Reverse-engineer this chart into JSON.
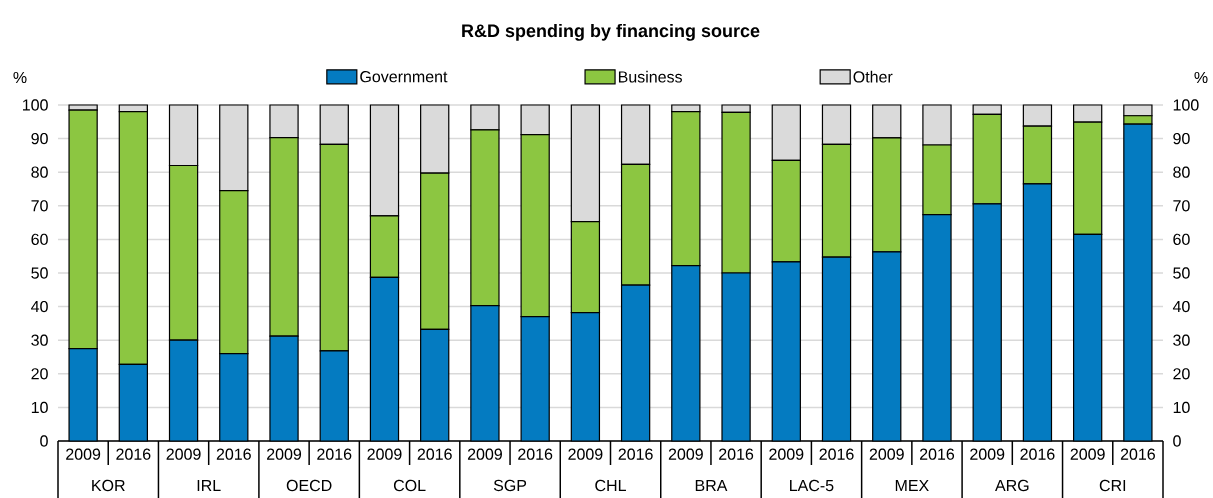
{
  "chart_data": {
    "type": "bar",
    "title": "R&D spending by financing source",
    "categories": [
      "2009",
      "2016",
      "2009",
      "2016",
      "2009",
      "2016",
      "2009",
      "2016",
      "2009",
      "2016",
      "2009",
      "2016",
      "2009",
      "2016",
      "2009",
      "2016",
      "2009",
      "2016",
      "2009",
      "2016",
      "2009",
      "2016"
    ],
    "annotations": [
      "KOR",
      "IRL",
      "OECD",
      "COL",
      "SGP",
      "CHL",
      "BRA",
      "LAC-5",
      "MEX",
      "ARG",
      "CRI"
    ],
    "stacked": true,
    "series": [
      {
        "name": "Government",
        "color": "#047bc1",
        "values": [
          27.5,
          22.8,
          30,
          26,
          31.2,
          26.8,
          48.7,
          33.2,
          40.3,
          37,
          38.2,
          46.4,
          52.2,
          50,
          53.3,
          54.7,
          56.3,
          67.4,
          70.6,
          76.5,
          61.5,
          94.3
        ]
      },
      {
        "name": "Business",
        "color": "#8cc641",
        "values": [
          71,
          75.2,
          52,
          48.5,
          59.1,
          61.5,
          18.3,
          46.5,
          52.3,
          54.2,
          27.1,
          35.9,
          45.8,
          47.8,
          30.2,
          33.6,
          33.9,
          20.7,
          26.6,
          17.2,
          33.4,
          2.5
        ]
      },
      {
        "name": "Other",
        "color": "#dadada",
        "values": [
          1.5,
          2,
          18,
          25.5,
          9.7,
          11.7,
          33,
          20.3,
          7.4,
          8.8,
          34.7,
          17.7,
          2,
          2.2,
          16.5,
          11.7,
          9.8,
          11.9,
          2.8,
          6.3,
          5.1,
          3.2
        ]
      }
    ],
    "ylabel": "%",
    "ylim": [
      0,
      100
    ],
    "yticks": [
      0,
      10,
      20,
      30,
      40,
      50,
      60,
      70,
      80,
      90,
      100
    ],
    "y2label": "%",
    "y2lim": [
      0,
      100
    ],
    "y2ticks": [
      0,
      10,
      20,
      30,
      40,
      50,
      60,
      70,
      80,
      90,
      100
    ],
    "grid": "y",
    "legend": "top"
  }
}
